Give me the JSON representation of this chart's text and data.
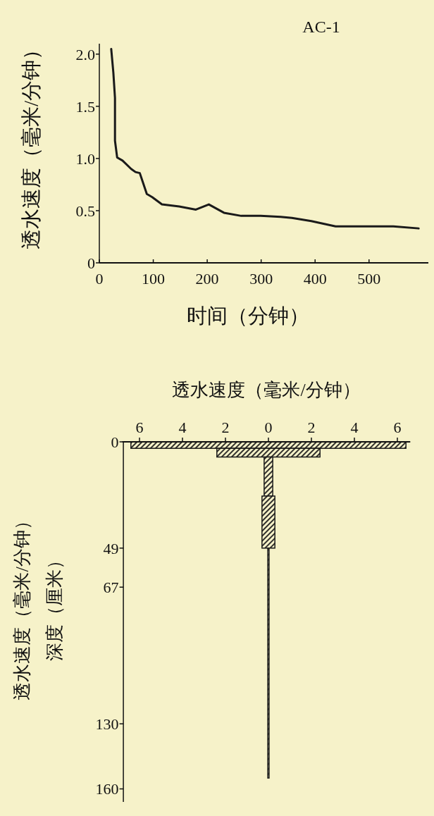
{
  "chart_data": [
    {
      "type": "line",
      "title": "AC-1",
      "xlabel": "时间（分钟）",
      "ylabel": "透水速度（毫米/分钟）",
      "color": "#1a1a1a",
      "x": [
        22,
        26,
        29,
        29,
        33,
        43,
        59,
        67,
        75,
        88,
        98,
        116,
        148,
        179,
        203,
        231,
        263,
        299,
        336,
        357,
        393,
        438,
        493,
        545,
        592
      ],
      "values": [
        2.05,
        1.82,
        1.58,
        1.17,
        1.01,
        0.98,
        0.9,
        0.87,
        0.86,
        0.66,
        0.63,
        0.56,
        0.54,
        0.51,
        0.56,
        0.48,
        0.45,
        0.45,
        0.44,
        0.43,
        0.4,
        0.35,
        0.35,
        0.35,
        0.33
      ],
      "xlim": [
        0,
        610
      ],
      "xticks": [
        0,
        100,
        200,
        300,
        400,
        500
      ],
      "ylim": [
        0,
        2.1
      ],
      "yticks": [
        0,
        0.5,
        {
          "value": 1,
          "label": "1.0"
        },
        1.5,
        {
          "value": 2,
          "label": "2.0"
        }
      ]
    },
    {
      "type": "histogram",
      "orientation": "horizontal",
      "xlabel": "透水速度（毫米/分钟）",
      "ylabel": "透水速度（毫米/分钟）深度（厘米）",
      "color": "#1a1a1a",
      "bins": [
        0,
        3,
        7,
        25,
        49,
        155
      ],
      "base": [
        -6.4,
        -2.4,
        -0.2,
        -0.3,
        -0.03
      ],
      "values": [
        12.8,
        4.8,
        0.4,
        0.6,
        0.06
      ],
      "xlim": [
        -6.8,
        6.6
      ],
      "xticks": [
        {
          "value": -6,
          "label": "6"
        },
        {
          "value": -4,
          "label": "4"
        },
        {
          "value": -2,
          "label": "2"
        },
        0,
        2,
        4,
        6
      ],
      "ylim": [
        166,
        0
      ],
      "yticks": [
        0,
        49,
        67,
        130,
        160
      ]
    }
  ]
}
